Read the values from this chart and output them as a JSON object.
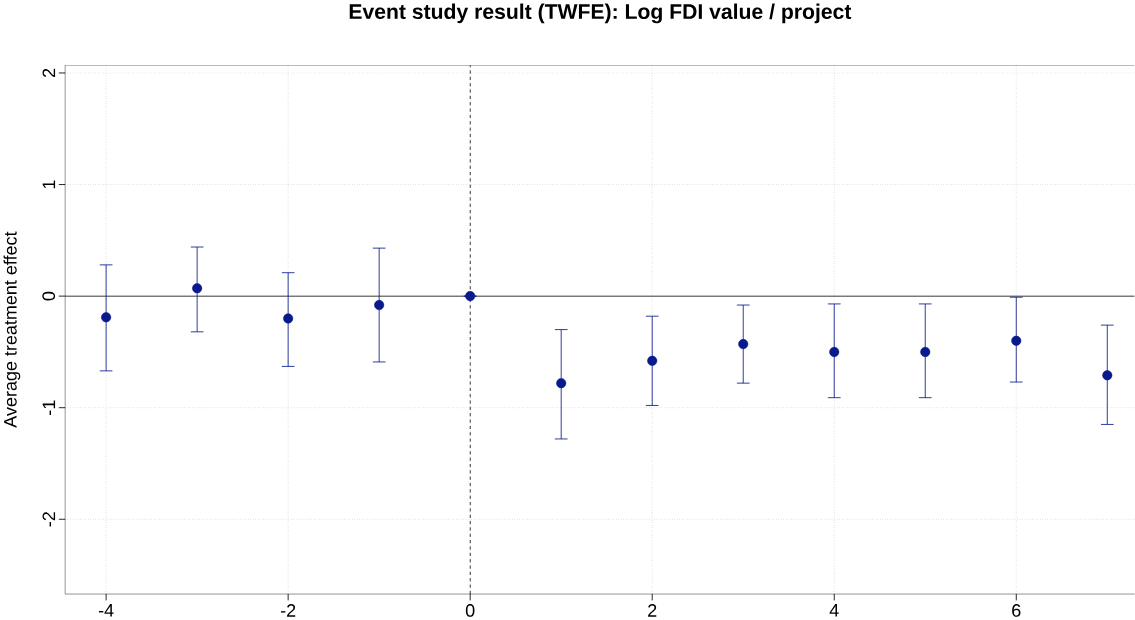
{
  "chart_data": {
    "type": "scatter",
    "title": "Event study result (TWFE): Log FDI value / project",
    "ylabel": "Average treatment effect",
    "x": [
      -4,
      -3,
      -2,
      -1,
      0,
      1,
      2,
      3,
      4,
      5,
      6,
      7
    ],
    "values": [
      -0.19,
      0.07,
      -0.2,
      -0.08,
      0,
      -0.78,
      -0.58,
      -0.43,
      -0.5,
      -0.5,
      -0.4,
      -0.71
    ],
    "errors": [
      [
        -0.67,
        0.28
      ],
      [
        -0.32,
        0.44
      ],
      [
        -0.63,
        0.21
      ],
      [
        -0.59,
        0.43
      ],
      null,
      [
        -1.28,
        -0.3
      ],
      [
        -0.98,
        -0.18
      ],
      [
        -0.78,
        -0.08
      ],
      [
        -0.91,
        -0.07
      ],
      [
        -0.91,
        -0.07
      ],
      [
        -0.77,
        -0.01
      ],
      [
        -1.15,
        -0.26
      ]
    ],
    "color": "#0a1a8c",
    "marker": "circle",
    "xlim": [
      -4.45,
      7.3
    ],
    "ylim": [
      -2.67,
      2.07
    ],
    "xticks": [
      -4,
      -2,
      0,
      2,
      4,
      6
    ],
    "yticks": [
      -2,
      -1,
      0,
      1,
      2
    ],
    "grid": true,
    "ref_lines": [
      {
        "axis": "y",
        "value": 0,
        "line_style": "solid",
        "color": "#000000"
      },
      {
        "axis": "x",
        "value": 0,
        "line_style": "dashed",
        "color": "#000000"
      }
    ]
  }
}
